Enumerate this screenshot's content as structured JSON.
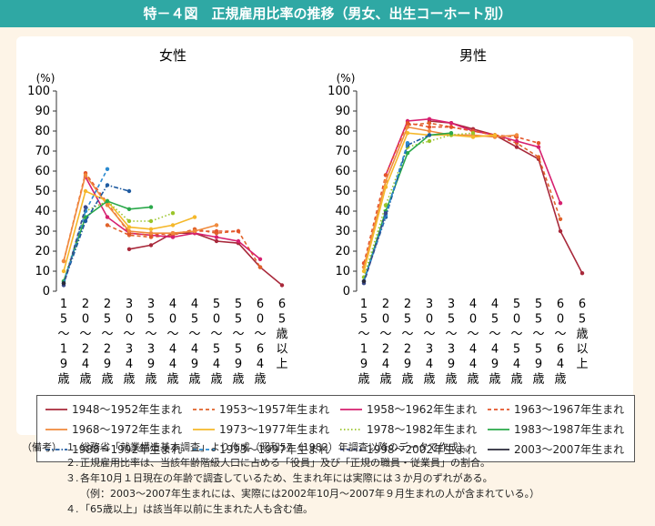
{
  "title": "特－４図　正規雇用比率の推移（男女、出生コーホート別）",
  "chart_data": [
    {
      "type": "line",
      "title": "女性",
      "ylabel": "(%)",
      "ylim": [
        0,
        100
      ],
      "yticks": [
        0,
        10,
        20,
        30,
        40,
        50,
        60,
        70,
        80,
        90,
        100
      ],
      "categories": [
        "15～19歳",
        "20～24歳",
        "25～29歳",
        "30～34歳",
        "35～39歳",
        "40～44歳",
        "45～49歳",
        "50～54歳",
        "55～59歳",
        "60～64歳",
        "65歳以上"
      ],
      "series": [
        {
          "name": "1948～1952年生まれ",
          "values": [
            null,
            null,
            null,
            21,
            23,
            29,
            29,
            25,
            24,
            12,
            3
          ]
        },
        {
          "name": "1953～1957年生まれ",
          "values": [
            null,
            null,
            33,
            28,
            27,
            28,
            31,
            29,
            30,
            12,
            null
          ]
        },
        {
          "name": "1958～1962年生まれ",
          "values": [
            null,
            57,
            37,
            29,
            28,
            27,
            29,
            27,
            25,
            16,
            null
          ]
        },
        {
          "name": "1963～1967年生まれ",
          "values": [
            15,
            59,
            44,
            29,
            28,
            29,
            30,
            30,
            30,
            null,
            null
          ]
        },
        {
          "name": "1968～1972年生まれ",
          "values": [
            15,
            58,
            43,
            30,
            29,
            29,
            30,
            33,
            null,
            null,
            null
          ]
        },
        {
          "name": "1973～1977年生まれ",
          "values": [
            10,
            50,
            45,
            32,
            31,
            33,
            37,
            null,
            null,
            null,
            null
          ]
        },
        {
          "name": "1978～1982年生まれ",
          "values": [
            5,
            40,
            45,
            35,
            35,
            39,
            null,
            null,
            null,
            null,
            null
          ]
        },
        {
          "name": "1983～1987年生まれ",
          "values": [
            5,
            37,
            45,
            41,
            42,
            null,
            null,
            null,
            null,
            null,
            null
          ]
        },
        {
          "name": "1988～1992年生まれ",
          "values": [
            4,
            35,
            53,
            50,
            null,
            null,
            null,
            null,
            null,
            null,
            null
          ]
        },
        {
          "name": "1993～1997年生まれ",
          "values": [
            4,
            40,
            61,
            null,
            null,
            null,
            null,
            null,
            null,
            null,
            null
          ]
        },
        {
          "name": "1998～2002年生まれ",
          "values": [
            3,
            42,
            null,
            null,
            null,
            null,
            null,
            null,
            null,
            null,
            null
          ]
        },
        {
          "name": "2003～2007年生まれ",
          "values": [
            4,
            null,
            null,
            null,
            null,
            null,
            null,
            null,
            null,
            null,
            null
          ]
        }
      ]
    },
    {
      "type": "line",
      "title": "男性",
      "ylabel": "(%)",
      "ylim": [
        0,
        100
      ],
      "yticks": [
        0,
        10,
        20,
        30,
        40,
        50,
        60,
        70,
        80,
        90,
        100
      ],
      "categories": [
        "15～19歳",
        "20～24歳",
        "25～29歳",
        "30～34歳",
        "35～39歳",
        "40～44歳",
        "45～49歳",
        "50～54歳",
        "55～59歳",
        "60～64歳",
        "65歳以上"
      ],
      "series": [
        {
          "name": "1948～1952年生まれ",
          "values": [
            null,
            null,
            null,
            85,
            84,
            81,
            78,
            72,
            66,
            30,
            9
          ]
        },
        {
          "name": "1953～1957年生まれ",
          "values": [
            null,
            null,
            83,
            84,
            82,
            80,
            78,
            74,
            67,
            36,
            null
          ]
        },
        {
          "name": "1958～1962年生まれ",
          "values": [
            null,
            58,
            85,
            86,
            84,
            80,
            78,
            75,
            72,
            44,
            null
          ]
        },
        {
          "name": "1963～1967年生まれ",
          "values": [
            14,
            58,
            84,
            82,
            82,
            80,
            78,
            77,
            74,
            null,
            null
          ]
        },
        {
          "name": "1968～1972年生まれ",
          "values": [
            12,
            55,
            82,
            80,
            78,
            78,
            77,
            78,
            null,
            null,
            null
          ]
        },
        {
          "name": "1973～1977年生まれ",
          "values": [
            10,
            52,
            79,
            78,
            78,
            77,
            78,
            null,
            null,
            null,
            null
          ]
        },
        {
          "name": "1978～1982年生まれ",
          "values": [
            7,
            43,
            72,
            75,
            78,
            79,
            null,
            null,
            null,
            null,
            null
          ]
        },
        {
          "name": "1983～1987年生まれ",
          "values": [
            5,
            40,
            69,
            78,
            79,
            null,
            null,
            null,
            null,
            null,
            null
          ]
        },
        {
          "name": "1988～1992年生まれ",
          "values": [
            5,
            37,
            73,
            78,
            null,
            null,
            null,
            null,
            null,
            null,
            null
          ]
        },
        {
          "name": "1993～1997年生まれ",
          "values": [
            5,
            38,
            74,
            null,
            null,
            null,
            null,
            null,
            null,
            null,
            null
          ]
        },
        {
          "name": "1998～2002年生まれ",
          "values": [
            4,
            39,
            null,
            null,
            null,
            null,
            null,
            null,
            null,
            null,
            null
          ]
        },
        {
          "name": "2003～2007年生まれ",
          "values": [
            5,
            null,
            null,
            null,
            null,
            null,
            null,
            null,
            null,
            null,
            null
          ]
        }
      ]
    }
  ],
  "legend": [
    {
      "name": "1948～1952年生まれ",
      "color": "#a8283a",
      "dash": "solid"
    },
    {
      "name": "1953～1957年生まれ",
      "color": "#e0622a",
      "dash": "dashed"
    },
    {
      "name": "1958～1962年生まれ",
      "color": "#d6206f",
      "dash": "solid"
    },
    {
      "name": "1963～1967年生まれ",
      "color": "#e4542a",
      "dash": "dashed"
    },
    {
      "name": "1968～1972年生まれ",
      "color": "#f08a3c",
      "dash": "solid"
    },
    {
      "name": "1973～1977年生まれ",
      "color": "#f5b82a",
      "dash": "solid"
    },
    {
      "name": "1978～1982年生まれ",
      "color": "#9ac42a",
      "dash": "dotted"
    },
    {
      "name": "1983～1987年生まれ",
      "color": "#2aa84a",
      "dash": "solid"
    },
    {
      "name": "1988～1992年生まれ",
      "color": "#1e5aa0",
      "dash": "dashdot"
    },
    {
      "name": "1993～1997年生まれ",
      "color": "#2a8ad0",
      "dash": "dashed"
    },
    {
      "name": "1998～2002年生まれ",
      "color": "#3a4a8a",
      "dash": "dashed"
    },
    {
      "name": "2003～2007年生まれ",
      "color": "#2a2a3a",
      "dash": "solid"
    }
  ],
  "notes": {
    "label": "（備考）",
    "items": [
      {
        "num": "１.",
        "text": "総務省「就業構造基本調査」より作成（昭和57（1982）年調査以降のデータで作成）。"
      },
      {
        "num": "２.",
        "text": "正規雇用比率は、当該年齢階級人口に占める「役員」及び「正規の職員・従業員」の割合。"
      },
      {
        "num": "３.",
        "text": "各年10月１日現在の年齢で調査しているため、生まれ年には実際には３か月のずれがある。"
      },
      {
        "num": "",
        "text": "（例：2003～2007年生まれには、実際には2002年10月～2007年９月生まれの人が含まれている。）"
      },
      {
        "num": "４.",
        "text": "「65歳以上」は該当年以前に生まれた人も含む値。"
      }
    ]
  }
}
